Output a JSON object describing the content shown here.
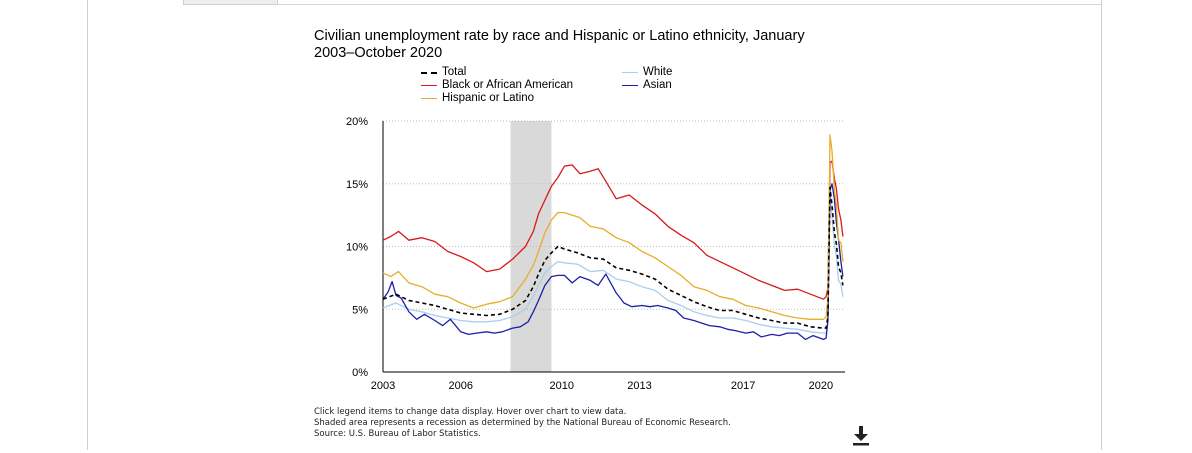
{
  "chart_data": {
    "type": "line",
    "title": "Civilian unemployment rate by race and Hispanic or Latino ethnicity, January 2003–October 2020",
    "y_ticks": [
      "0%",
      "5%",
      "10%",
      "15%",
      "20%"
    ],
    "ylim": [
      0,
      20
    ],
    "x_tick_labels": [
      "2003",
      "2006",
      "2010",
      "2013",
      "2017",
      "2020"
    ],
    "x_tick_positions": [
      2003.0,
      2006.0,
      2009.9,
      2012.9,
      2016.9,
      2019.9
    ],
    "xlim": [
      2003.0,
      2020.83
    ],
    "grid": true,
    "legend_position": "top",
    "recession_shade": [
      2007.92,
      2009.5
    ],
    "series": [
      {
        "name": "Total",
        "color": "#000000",
        "dash": true,
        "points": [
          [
            2003.0,
            5.8
          ],
          [
            2003.5,
            6.2
          ],
          [
            2004.0,
            5.7
          ],
          [
            2004.5,
            5.5
          ],
          [
            2005.0,
            5.3
          ],
          [
            2005.5,
            5.0
          ],
          [
            2006.0,
            4.7
          ],
          [
            2006.5,
            4.6
          ],
          [
            2007.0,
            4.5
          ],
          [
            2007.5,
            4.6
          ],
          [
            2008.0,
            5.0
          ],
          [
            2008.5,
            5.7
          ],
          [
            2008.8,
            6.8
          ],
          [
            2009.0,
            7.8
          ],
          [
            2009.25,
            8.9
          ],
          [
            2009.5,
            9.5
          ],
          [
            2009.75,
            10.0
          ],
          [
            2010.0,
            9.8
          ],
          [
            2010.5,
            9.5
          ],
          [
            2011.0,
            9.1
          ],
          [
            2011.5,
            9.0
          ],
          [
            2012.0,
            8.3
          ],
          [
            2012.5,
            8.1
          ],
          [
            2013.0,
            7.8
          ],
          [
            2013.5,
            7.4
          ],
          [
            2014.0,
            6.6
          ],
          [
            2014.5,
            6.1
          ],
          [
            2015.0,
            5.6
          ],
          [
            2015.5,
            5.2
          ],
          [
            2016.0,
            4.9
          ],
          [
            2016.5,
            4.9
          ],
          [
            2017.0,
            4.6
          ],
          [
            2017.5,
            4.3
          ],
          [
            2018.0,
            4.1
          ],
          [
            2018.5,
            3.9
          ],
          [
            2019.0,
            3.9
          ],
          [
            2019.5,
            3.6
          ],
          [
            2020.0,
            3.5
          ],
          [
            2020.1,
            3.5
          ],
          [
            2020.17,
            4.4
          ],
          [
            2020.25,
            14.7
          ],
          [
            2020.33,
            13.3
          ],
          [
            2020.42,
            11.1
          ],
          [
            2020.5,
            10.2
          ],
          [
            2020.58,
            8.4
          ],
          [
            2020.67,
            7.9
          ],
          [
            2020.75,
            6.9
          ]
        ]
      },
      {
        "name": "White",
        "color": "#a9cfee",
        "dash": false,
        "points": [
          [
            2003.0,
            5.1
          ],
          [
            2003.5,
            5.5
          ],
          [
            2004.0,
            5.0
          ],
          [
            2004.5,
            4.8
          ],
          [
            2005.0,
            4.5
          ],
          [
            2005.5,
            4.3
          ],
          [
            2006.0,
            4.1
          ],
          [
            2006.5,
            4.0
          ],
          [
            2007.0,
            4.0
          ],
          [
            2007.5,
            4.1
          ],
          [
            2008.0,
            4.4
          ],
          [
            2008.5,
            5.0
          ],
          [
            2008.8,
            6.0
          ],
          [
            2009.0,
            6.9
          ],
          [
            2009.25,
            7.9
          ],
          [
            2009.5,
            8.4
          ],
          [
            2009.75,
            8.8
          ],
          [
            2010.0,
            8.7
          ],
          [
            2010.5,
            8.6
          ],
          [
            2011.0,
            8.0
          ],
          [
            2011.5,
            8.1
          ],
          [
            2012.0,
            7.4
          ],
          [
            2012.5,
            7.2
          ],
          [
            2013.0,
            6.8
          ],
          [
            2013.5,
            6.5
          ],
          [
            2014.0,
            5.7
          ],
          [
            2014.5,
            5.3
          ],
          [
            2015.0,
            4.8
          ],
          [
            2015.5,
            4.5
          ],
          [
            2016.0,
            4.3
          ],
          [
            2016.5,
            4.3
          ],
          [
            2017.0,
            4.1
          ],
          [
            2017.5,
            3.8
          ],
          [
            2018.0,
            3.6
          ],
          [
            2018.5,
            3.5
          ],
          [
            2019.0,
            3.4
          ],
          [
            2019.5,
            3.2
          ],
          [
            2020.0,
            3.1
          ],
          [
            2020.1,
            3.1
          ],
          [
            2020.17,
            4.0
          ],
          [
            2020.25,
            14.2
          ],
          [
            2020.33,
            12.4
          ],
          [
            2020.42,
            10.1
          ],
          [
            2020.5,
            9.2
          ],
          [
            2020.58,
            7.3
          ],
          [
            2020.67,
            7.0
          ],
          [
            2020.75,
            6.0
          ]
        ]
      },
      {
        "name": "Black or African American",
        "color": "#d7191c",
        "dash": false,
        "points": [
          [
            2003.0,
            10.5
          ],
          [
            2003.3,
            10.8
          ],
          [
            2003.6,
            11.2
          ],
          [
            2004.0,
            10.5
          ],
          [
            2004.5,
            10.7
          ],
          [
            2005.0,
            10.4
          ],
          [
            2005.5,
            9.6
          ],
          [
            2006.0,
            9.2
          ],
          [
            2006.5,
            8.7
          ],
          [
            2007.0,
            8.0
          ],
          [
            2007.5,
            8.2
          ],
          [
            2008.0,
            9.0
          ],
          [
            2008.5,
            10.0
          ],
          [
            2008.8,
            11.2
          ],
          [
            2009.0,
            12.6
          ],
          [
            2009.25,
            13.7
          ],
          [
            2009.5,
            14.8
          ],
          [
            2009.75,
            15.5
          ],
          [
            2010.0,
            16.4
          ],
          [
            2010.3,
            16.5
          ],
          [
            2010.6,
            15.8
          ],
          [
            2011.0,
            16.0
          ],
          [
            2011.3,
            16.2
          ],
          [
            2011.6,
            15.2
          ],
          [
            2012.0,
            13.8
          ],
          [
            2012.5,
            14.1
          ],
          [
            2013.0,
            13.3
          ],
          [
            2013.5,
            12.6
          ],
          [
            2014.0,
            11.6
          ],
          [
            2014.5,
            10.9
          ],
          [
            2015.0,
            10.3
          ],
          [
            2015.5,
            9.3
          ],
          [
            2016.0,
            8.8
          ],
          [
            2016.5,
            8.3
          ],
          [
            2017.0,
            7.8
          ],
          [
            2017.5,
            7.3
          ],
          [
            2018.0,
            6.9
          ],
          [
            2018.5,
            6.5
          ],
          [
            2019.0,
            6.6
          ],
          [
            2019.5,
            6.2
          ],
          [
            2020.0,
            5.8
          ],
          [
            2020.1,
            6.0
          ],
          [
            2020.17,
            6.7
          ],
          [
            2020.25,
            16.7
          ],
          [
            2020.33,
            16.8
          ],
          [
            2020.42,
            15.4
          ],
          [
            2020.5,
            14.6
          ],
          [
            2020.58,
            13.0
          ],
          [
            2020.67,
            12.1
          ],
          [
            2020.75,
            10.8
          ]
        ]
      },
      {
        "name": "Asian",
        "color": "#1f1fa8",
        "dash": false,
        "points": [
          [
            2003.0,
            5.8
          ],
          [
            2003.2,
            6.4
          ],
          [
            2003.35,
            7.2
          ],
          [
            2003.5,
            6.1
          ],
          [
            2003.7,
            5.9
          ],
          [
            2004.0,
            4.8
          ],
          [
            2004.3,
            4.2
          ],
          [
            2004.6,
            4.6
          ],
          [
            2005.0,
            4.1
          ],
          [
            2005.3,
            3.7
          ],
          [
            2005.6,
            4.2
          ],
          [
            2006.0,
            3.2
          ],
          [
            2006.3,
            3.0
          ],
          [
            2006.6,
            3.1
          ],
          [
            2007.0,
            3.2
          ],
          [
            2007.3,
            3.1
          ],
          [
            2007.6,
            3.2
          ],
          [
            2008.0,
            3.5
          ],
          [
            2008.3,
            3.6
          ],
          [
            2008.6,
            4.0
          ],
          [
            2008.8,
            4.8
          ],
          [
            2009.0,
            5.7
          ],
          [
            2009.25,
            6.9
          ],
          [
            2009.5,
            7.6
          ],
          [
            2009.75,
            7.7
          ],
          [
            2010.0,
            7.7
          ],
          [
            2010.3,
            7.1
          ],
          [
            2010.6,
            7.6
          ],
          [
            2011.0,
            7.3
          ],
          [
            2011.3,
            6.9
          ],
          [
            2011.6,
            7.8
          ],
          [
            2012.0,
            6.3
          ],
          [
            2012.3,
            5.5
          ],
          [
            2012.6,
            5.2
          ],
          [
            2013.0,
            5.3
          ],
          [
            2013.3,
            5.2
          ],
          [
            2013.6,
            5.3
          ],
          [
            2014.0,
            5.1
          ],
          [
            2014.3,
            4.9
          ],
          [
            2014.6,
            4.3
          ],
          [
            2015.0,
            4.1
          ],
          [
            2015.3,
            3.9
          ],
          [
            2015.6,
            3.7
          ],
          [
            2016.0,
            3.6
          ],
          [
            2016.3,
            3.4
          ],
          [
            2016.6,
            3.3
          ],
          [
            2017.0,
            3.1
          ],
          [
            2017.3,
            3.2
          ],
          [
            2017.6,
            2.8
          ],
          [
            2018.0,
            3.0
          ],
          [
            2018.3,
            2.9
          ],
          [
            2018.6,
            3.1
          ],
          [
            2019.0,
            3.1
          ],
          [
            2019.3,
            2.6
          ],
          [
            2019.6,
            2.9
          ],
          [
            2020.0,
            2.6
          ],
          [
            2020.1,
            2.7
          ],
          [
            2020.17,
            4.1
          ],
          [
            2020.25,
            14.5
          ],
          [
            2020.33,
            15.0
          ],
          [
            2020.42,
            13.8
          ],
          [
            2020.5,
            11.9
          ],
          [
            2020.58,
            10.6
          ],
          [
            2020.67,
            8.8
          ],
          [
            2020.75,
            7.6
          ]
        ]
      },
      {
        "name": "Hispanic or Latino",
        "color": "#e6ae2b",
        "dash": false,
        "points": [
          [
            2003.0,
            7.9
          ],
          [
            2003.3,
            7.6
          ],
          [
            2003.6,
            8.0
          ],
          [
            2004.0,
            7.1
          ],
          [
            2004.5,
            6.8
          ],
          [
            2005.0,
            6.2
          ],
          [
            2005.5,
            6.0
          ],
          [
            2006.0,
            5.5
          ],
          [
            2006.5,
            5.1
          ],
          [
            2007.0,
            5.4
          ],
          [
            2007.5,
            5.6
          ],
          [
            2008.0,
            6.0
          ],
          [
            2008.5,
            7.4
          ],
          [
            2008.8,
            8.5
          ],
          [
            2009.0,
            9.6
          ],
          [
            2009.25,
            11.1
          ],
          [
            2009.5,
            12.1
          ],
          [
            2009.75,
            12.7
          ],
          [
            2010.0,
            12.7
          ],
          [
            2010.3,
            12.5
          ],
          [
            2010.6,
            12.3
          ],
          [
            2011.0,
            11.6
          ],
          [
            2011.5,
            11.4
          ],
          [
            2012.0,
            10.7
          ],
          [
            2012.5,
            10.3
          ],
          [
            2013.0,
            9.6
          ],
          [
            2013.5,
            9.1
          ],
          [
            2014.0,
            8.4
          ],
          [
            2014.5,
            7.7
          ],
          [
            2015.0,
            6.8
          ],
          [
            2015.5,
            6.5
          ],
          [
            2016.0,
            6.0
          ],
          [
            2016.5,
            5.8
          ],
          [
            2017.0,
            5.3
          ],
          [
            2017.5,
            5.1
          ],
          [
            2018.0,
            4.8
          ],
          [
            2018.5,
            4.5
          ],
          [
            2019.0,
            4.3
          ],
          [
            2019.5,
            4.2
          ],
          [
            2020.0,
            4.2
          ],
          [
            2020.1,
            4.4
          ],
          [
            2020.17,
            6.0
          ],
          [
            2020.25,
            18.9
          ],
          [
            2020.33,
            17.6
          ],
          [
            2020.42,
            14.5
          ],
          [
            2020.5,
            13.3
          ],
          [
            2020.58,
            10.5
          ],
          [
            2020.67,
            10.3
          ],
          [
            2020.75,
            8.8
          ]
        ]
      }
    ]
  },
  "legend": {
    "total": "Total",
    "black": "Black or African American",
    "hispanic": "Hispanic or Latino",
    "white": "White",
    "asian": "Asian"
  },
  "notes": {
    "line1": "Click legend items to change data display. Hover over chart to view data.",
    "line2": "Shaded area represents a recession as determined by the National Bureau of Economic Research.",
    "line3": "Source: U.S. Bureau of Labor Statistics."
  },
  "download_icon": "download-icon"
}
